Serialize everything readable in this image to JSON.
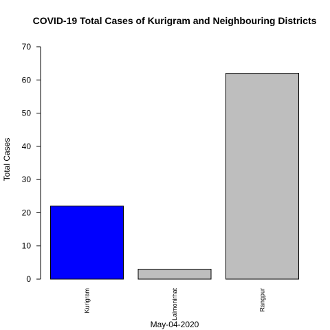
{
  "chart_data": {
    "type": "bar",
    "title": "COVID-19 Total Cases of Kurigram and Neighbouring Districts",
    "xlabel": "May-04-2020",
    "ylabel": "Total Cases",
    "categories": [
      "Kurigram",
      "Lalmonirhat",
      "Rangpur"
    ],
    "values": [
      22,
      3,
      62
    ],
    "colors": [
      "#0000ff",
      "#bebebe",
      "#bebebe"
    ],
    "ylim": [
      0,
      70
    ],
    "yticks": [
      "0",
      "10",
      "20",
      "30",
      "40",
      "50",
      "60",
      "70"
    ],
    "grid": false
  }
}
